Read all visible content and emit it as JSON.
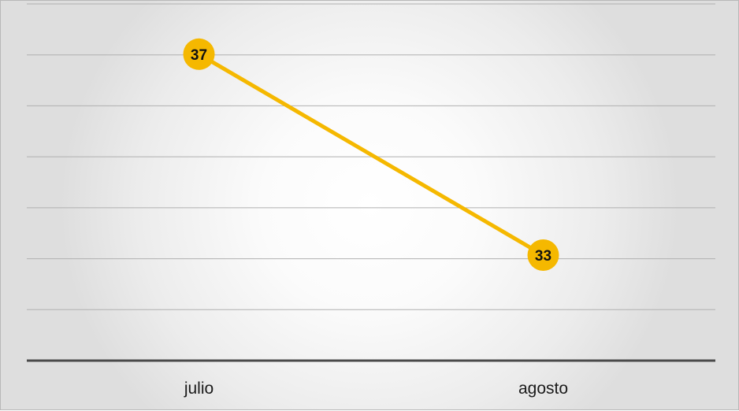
{
  "chart_data": {
    "type": "line",
    "categories": [
      "julio",
      "agosto"
    ],
    "series": [
      {
        "values": [
          37,
          33
        ],
        "color": "#f5b800"
      }
    ],
    "ylim": [
      30.9,
      38.0
    ],
    "grid": true,
    "legend": "none",
    "data_labels": [
      "37",
      "33"
    ]
  }
}
